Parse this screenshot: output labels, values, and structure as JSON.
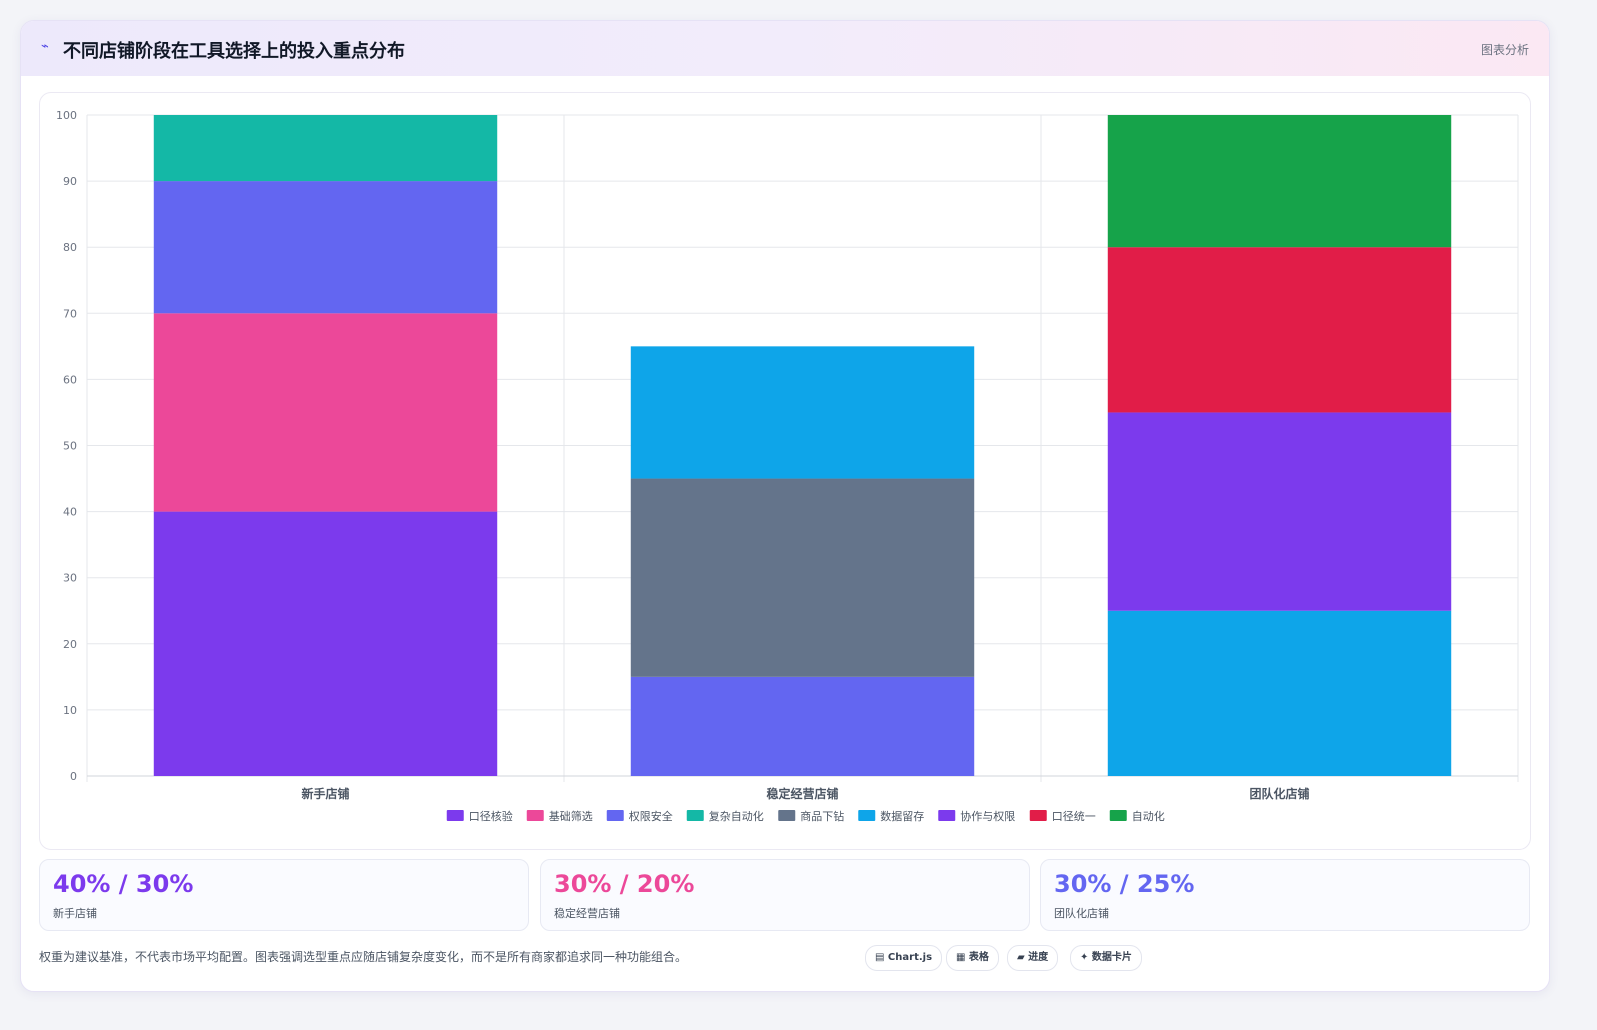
{
  "header": {
    "icon": "chart-line-icon",
    "title": "不同店铺阶段在工具选择上的投入重点分布",
    "right_label": "图表分析"
  },
  "chart_data": {
    "type": "bar",
    "stacked": true,
    "categories": [
      "新手店铺",
      "稳定经营店铺",
      "团队化店铺"
    ],
    "ylim": [
      0,
      100
    ],
    "yticks": [
      0,
      10,
      20,
      30,
      40,
      50,
      60,
      70,
      80,
      90,
      100
    ],
    "grid": true,
    "legend_position": "bottom",
    "series": [
      {
        "name": "口径核验",
        "color": "#7c3aed",
        "values": [
          40,
          0,
          0
        ]
      },
      {
        "name": "基础筛选",
        "color": "#ec4899",
        "values": [
          30,
          0,
          0
        ]
      },
      {
        "name": "权限安全",
        "color": "#6366f1",
        "values": [
          20,
          15,
          0
        ]
      },
      {
        "name": "复杂自动化",
        "color": "#14b8a6",
        "values": [
          10,
          0,
          0
        ]
      },
      {
        "name": "商品下钻",
        "color": "#64748b",
        "values": [
          0,
          30,
          0
        ]
      },
      {
        "name": "数据留存",
        "color": "#0ea5e9",
        "values": [
          0,
          20,
          25
        ]
      },
      {
        "name": "协作与权限",
        "color": "#7c3aed",
        "values": [
          0,
          0,
          30
        ]
      },
      {
        "name": "口径统一",
        "color": "#e11d48",
        "values": [
          0,
          0,
          25
        ]
      },
      {
        "name": "自动化",
        "color": "#16a34a",
        "values": [
          0,
          0,
          20
        ]
      }
    ]
  },
  "stats": [
    {
      "value": "40% / 30%",
      "label": "新手店铺",
      "color": "#7c3aed"
    },
    {
      "value": "30% / 20%",
      "label": "稳定经营店铺",
      "color": "#ec4899"
    },
    {
      "value": "30% / 25%",
      "label": "团队化店铺",
      "color": "#6366f1"
    }
  ],
  "footnote": "权重为建议基准，不代表市场平均配置。图表强调选型重点应随店铺复杂度变化，而不是所有商家都追求同一种功能组合。",
  "chips": [
    "▤ Chart.js",
    "▦ 表格",
    "▰ 进度",
    "✦ 数据卡片"
  ]
}
